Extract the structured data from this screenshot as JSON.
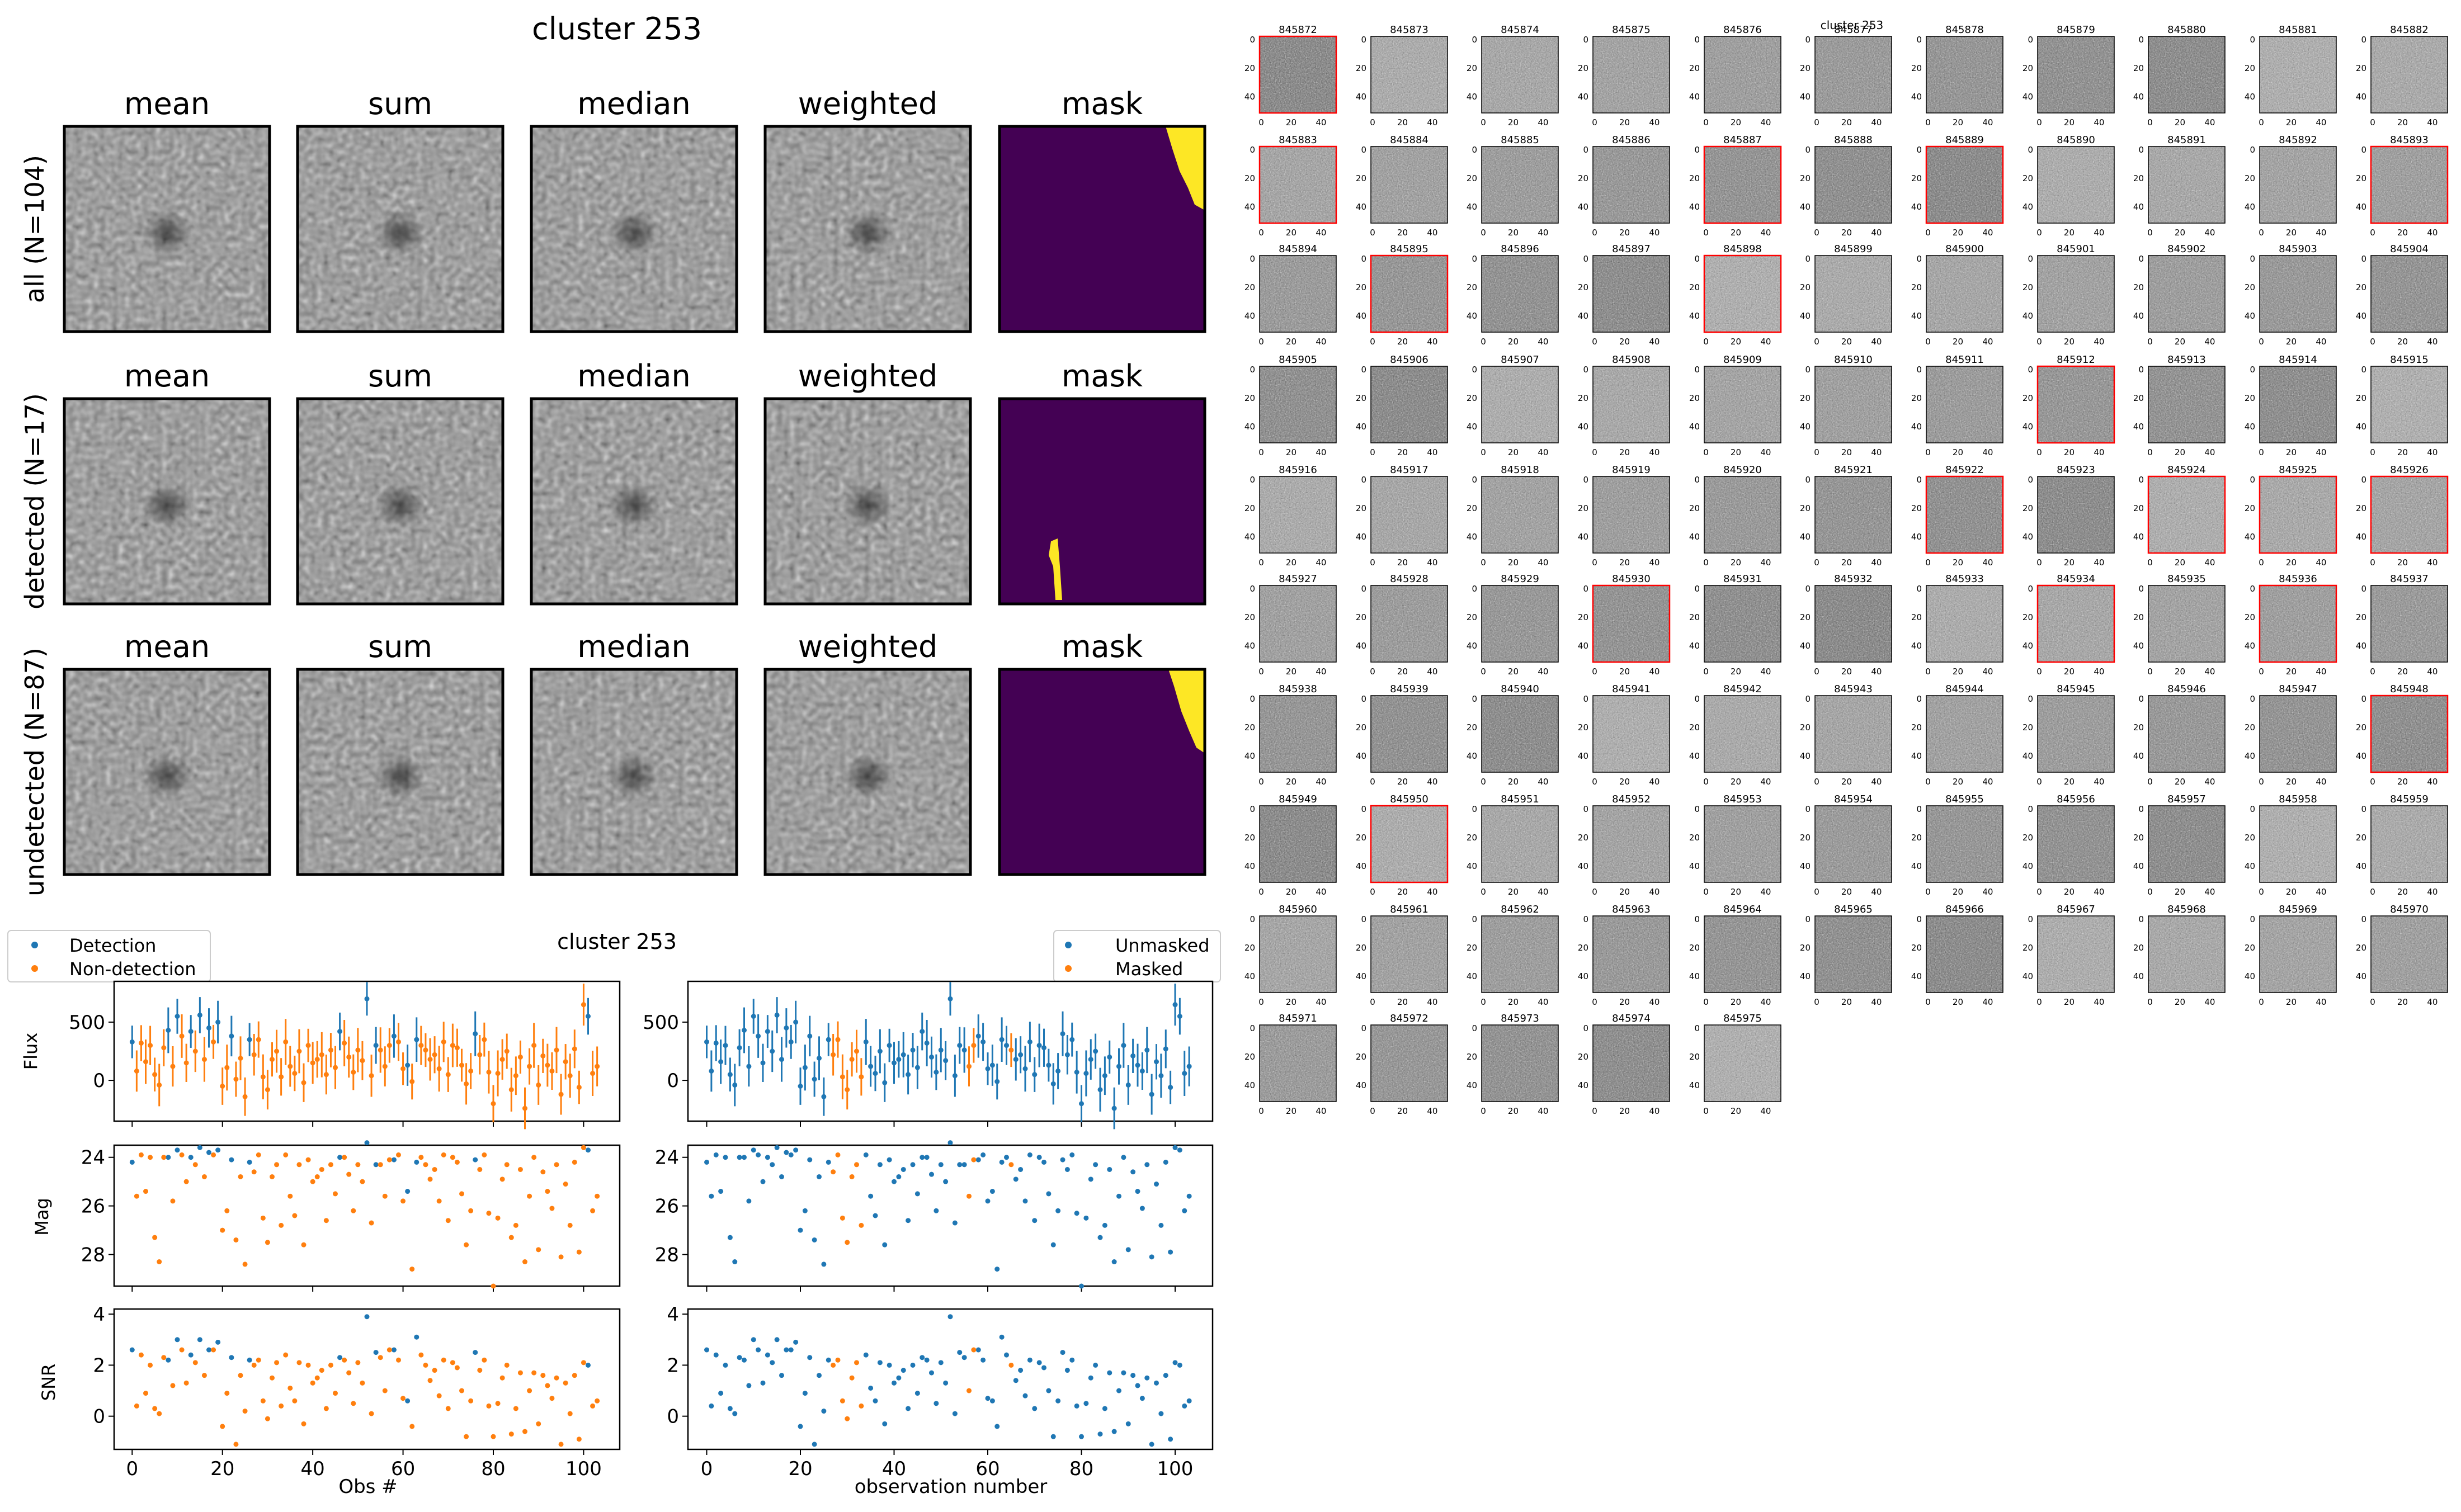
{
  "stacks": {
    "title": "cluster 253",
    "col_titles": [
      "mean",
      "sum",
      "median",
      "weighted",
      "mask"
    ],
    "row_labels": [
      "all (N=104)",
      "detected (N=17)",
      "undetected (N=87)"
    ],
    "mask_color": "#440154",
    "mask_highlight": "#fde725"
  },
  "lightcurve": {
    "title": "cluster 253",
    "legend_left": [
      "Detection",
      "Non-detection"
    ],
    "legend_right": [
      "Unmasked",
      "Masked"
    ],
    "ylabels": [
      "Flux",
      "Mag",
      "SNR"
    ],
    "xlabel_left": "Obs #",
    "xlabel_right": "observation number",
    "colors": {
      "blue": "#1f77b4",
      "orange": "#ff7f0e"
    }
  },
  "grid": {
    "overlay_title": "cluster 253",
    "cutout_ids": [
      "845872",
      "845873",
      "845874",
      "845875",
      "845876",
      "845877",
      "845878",
      "845879",
      "845880",
      "845881",
      "845882",
      "845883",
      "845884",
      "845885",
      "845886",
      "845887",
      "845888",
      "845889",
      "845890",
      "845891",
      "845892",
      "845893",
      "845894",
      "845895",
      "845896",
      "845897",
      "845898",
      "845899",
      "845900",
      "845901",
      "845902",
      "845903",
      "845904",
      "845905",
      "845906",
      "845907",
      "845908",
      "845909",
      "845910",
      "845911",
      "845912",
      "845913",
      "845914",
      "845915",
      "845916",
      "845917",
      "845918",
      "845919",
      "845920",
      "845921",
      "845922",
      "845923",
      "845924",
      "845925",
      "845926",
      "845927",
      "845928",
      "845929",
      "845930",
      "845931",
      "845932",
      "845933",
      "845934",
      "845935",
      "845936",
      "845937",
      "845938",
      "845939",
      "845940",
      "845941",
      "845942",
      "845943",
      "845944",
      "845945",
      "845946",
      "845947",
      "845948",
      "845949",
      "845950",
      "845951",
      "845952",
      "845953",
      "845954",
      "845955",
      "845956",
      "845957",
      "845958",
      "845959",
      "845960",
      "845961",
      "845962",
      "845963",
      "845964",
      "845965",
      "845966",
      "845967",
      "845968",
      "845969",
      "845970",
      "845971",
      "845972",
      "845973",
      "845974",
      "845975"
    ],
    "highlighted_ids": [
      "845872",
      "845883",
      "845887",
      "845889",
      "845893",
      "845895",
      "845898",
      "845912",
      "845922",
      "845924",
      "845925",
      "845926",
      "845930",
      "845934",
      "845936",
      "845948",
      "845950"
    ],
    "tick_labels_y": [
      "0",
      "20",
      "40"
    ],
    "tick_labels_x": [
      "0",
      "20",
      "40"
    ],
    "highlight_color": "#ff0000"
  },
  "chart_data": [
    {
      "type": "scatter",
      "panel": "flux",
      "ylabel": "Flux",
      "xlabel": "Obs #",
      "xlim": [
        -4,
        108
      ],
      "ylim": [
        -350,
        850
      ],
      "yticks": [
        0,
        500
      ],
      "xticks": [
        0,
        20,
        40,
        60,
        80,
        100
      ],
      "series": [
        {
          "name": "Detection",
          "x": [
            0,
            8,
            10,
            13,
            15,
            17,
            19,
            22,
            26,
            46,
            52,
            54,
            58,
            61,
            63,
            76,
            101
          ],
          "y": [
            330,
            430,
            550,
            420,
            560,
            450,
            500,
            380,
            350,
            420,
            700,
            300,
            380,
            130,
            350,
            400,
            550
          ]
        },
        {
          "name": "Non-detection",
          "x": [
            1,
            2,
            3,
            4,
            5,
            6,
            7,
            9,
            11,
            12,
            14,
            16,
            18,
            20,
            21,
            23,
            24,
            25,
            27,
            28,
            29,
            30,
            31,
            32,
            33,
            34,
            35,
            36,
            37,
            38,
            39,
            40,
            41,
            42,
            43,
            44,
            45,
            47,
            48,
            49,
            50,
            51,
            53,
            55,
            56,
            57,
            59,
            60,
            62,
            64,
            65,
            66,
            67,
            68,
            69,
            70,
            71,
            72,
            73,
            74,
            75,
            77,
            78,
            79,
            80,
            81,
            82,
            83,
            84,
            85,
            86,
            87,
            88,
            89,
            90,
            91,
            92,
            93,
            94,
            95,
            96,
            97,
            98,
            99,
            100,
            102,
            103
          ],
          "y": [
            80,
            320,
            160,
            300,
            50,
            -40,
            280,
            120,
            380,
            150,
            250,
            180,
            330,
            -50,
            110,
            10,
            190,
            -140,
            220,
            350,
            30,
            -80,
            180,
            250,
            30,
            330,
            120,
            60,
            250,
            -20,
            300,
            150,
            180,
            220,
            50,
            260,
            110,
            320,
            200,
            70,
            260,
            170,
            40,
            260,
            120,
            300,
            330,
            100,
            -10,
            300,
            260,
            180,
            220,
            100,
            330,
            50,
            300,
            280,
            130,
            -30,
            80,
            220,
            350,
            70,
            -200,
            60,
            180,
            250,
            -80,
            40,
            200,
            -240,
            120,
            300,
            -40,
            210,
            130,
            80,
            260,
            -120,
            160,
            40,
            270,
            -60,
            650,
            60,
            120
          ]
        }
      ]
    },
    {
      "type": "scatter",
      "panel": "mag",
      "ylabel": "Mag",
      "xlabel": "Obs #",
      "xlim": [
        -4,
        108
      ],
      "ylim": [
        29.3,
        23.5
      ],
      "yticks": [
        24,
        26,
        28
      ],
      "xticks": [
        0,
        20,
        40,
        60,
        80,
        100
      ],
      "series": [
        {
          "name": "Detection",
          "x": [
            0,
            8,
            10,
            13,
            15,
            17,
            19,
            22,
            26,
            46,
            52,
            54,
            58,
            61,
            63,
            76,
            101
          ],
          "y": [
            24.2,
            24.0,
            23.7,
            24.0,
            23.6,
            23.8,
            23.7,
            24.1,
            24.2,
            24.0,
            23.4,
            24.3,
            24.1,
            25.4,
            24.2,
            24.1,
            23.7
          ]
        },
        {
          "name": "Non-detection",
          "x": [
            1,
            2,
            3,
            4,
            5,
            6,
            7,
            9,
            11,
            12,
            14,
            16,
            18,
            20,
            21,
            23,
            24,
            25,
            27,
            28,
            29,
            30,
            31,
            32,
            33,
            34,
            35,
            36,
            37,
            38,
            39,
            40,
            41,
            42,
            43,
            44,
            45,
            47,
            48,
            49,
            50,
            51,
            53,
            55,
            56,
            57,
            59,
            60,
            62,
            64,
            65,
            66,
            67,
            68,
            69,
            70,
            71,
            72,
            73,
            74,
            75,
            77,
            78,
            79,
            80,
            81,
            82,
            83,
            84,
            85,
            86,
            87,
            88,
            89,
            90,
            91,
            92,
            93,
            94,
            95,
            96,
            97,
            98,
            99,
            100,
            102,
            103
          ],
          "y": [
            25.6,
            23.9,
            25.4,
            24.0,
            27.3,
            28.3,
            24.0,
            25.8,
            23.9,
            25.0,
            24.3,
            24.8,
            23.9,
            27.0,
            26.2,
            27.4,
            24.8,
            28.4,
            24.6,
            23.9,
            26.5,
            27.5,
            24.8,
            24.3,
            26.8,
            23.9,
            25.6,
            26.4,
            24.3,
            27.6,
            24.1,
            25.0,
            24.8,
            24.5,
            26.6,
            24.3,
            25.5,
            24.0,
            24.7,
            26.2,
            24.3,
            25.0,
            26.7,
            24.3,
            25.6,
            24.1,
            23.9,
            25.8,
            28.6,
            24.0,
            24.3,
            24.9,
            24.5,
            25.8,
            23.9,
            26.6,
            24.0,
            24.2,
            25.5,
            27.6,
            26.2,
            24.5,
            23.9,
            26.3,
            29.3,
            26.5,
            24.9,
            24.3,
            27.3,
            26.8,
            24.5,
            28.3,
            25.6,
            24.0,
            27.8,
            24.6,
            25.4,
            26.1,
            24.3,
            28.1,
            25.1,
            26.8,
            24.2,
            27.9,
            23.6,
            26.2,
            25.6
          ]
        }
      ]
    },
    {
      "type": "scatter",
      "panel": "snr",
      "ylabel": "SNR",
      "xlabel": "Obs #",
      "xlim": [
        -4,
        108
      ],
      "ylim": [
        -1.3,
        4.2
      ],
      "yticks": [
        0,
        2,
        4
      ],
      "xticks": [
        0,
        20,
        40,
        60,
        80,
        100
      ],
      "series": [
        {
          "name": "Detection",
          "x": [
            0,
            8,
            10,
            13,
            15,
            17,
            19,
            22,
            26,
            46,
            52,
            54,
            58,
            61,
            63,
            76,
            101
          ],
          "y": [
            2.6,
            2.2,
            3.0,
            2.4,
            3.0,
            2.6,
            2.9,
            2.3,
            2.2,
            2.3,
            3.9,
            2.5,
            2.6,
            0.6,
            3.1,
            2.5,
            2.0
          ]
        },
        {
          "name": "Non-detection",
          "x": [
            1,
            2,
            3,
            4,
            5,
            6,
            7,
            9,
            11,
            12,
            14,
            16,
            18,
            20,
            21,
            23,
            24,
            25,
            27,
            28,
            29,
            30,
            31,
            32,
            33,
            34,
            35,
            36,
            37,
            38,
            39,
            40,
            41,
            42,
            43,
            44,
            45,
            47,
            48,
            49,
            50,
            51,
            53,
            55,
            56,
            57,
            59,
            60,
            62,
            64,
            65,
            66,
            67,
            68,
            69,
            70,
            71,
            72,
            73,
            74,
            75,
            77,
            78,
            79,
            80,
            81,
            82,
            83,
            84,
            85,
            86,
            87,
            88,
            89,
            90,
            91,
            92,
            93,
            94,
            95,
            96,
            97,
            98,
            99,
            100,
            102,
            103
          ],
          "y": [
            0.4,
            2.4,
            0.9,
            2.0,
            0.3,
            0.1,
            2.3,
            1.2,
            2.6,
            1.3,
            2.1,
            1.6,
            2.6,
            -0.4,
            0.9,
            -1.1,
            1.6,
            0.2,
            2.0,
            2.2,
            0.6,
            -0.1,
            1.5,
            2.1,
            0.4,
            2.4,
            1.1,
            0.6,
            2.1,
            -0.3,
            2.0,
            1.3,
            1.5,
            1.8,
            0.3,
            2.0,
            0.9,
            2.2,
            1.7,
            0.5,
            2.1,
            1.3,
            0.1,
            2.3,
            1.0,
            2.6,
            2.2,
            0.7,
            -0.4,
            2.4,
            2.0,
            1.4,
            1.8,
            0.8,
            2.2,
            0.3,
            2.1,
            1.9,
            1.0,
            -0.8,
            0.6,
            1.8,
            2.2,
            0.4,
            -0.8,
            0.5,
            1.5,
            2.0,
            -0.7,
            0.3,
            1.7,
            -0.6,
            1.0,
            1.7,
            -0.3,
            1.6,
            1.2,
            0.7,
            1.5,
            -1.1,
            1.3,
            0.1,
            1.6,
            -0.9,
            2.1,
            0.4,
            0.6
          ]
        }
      ]
    }
  ]
}
